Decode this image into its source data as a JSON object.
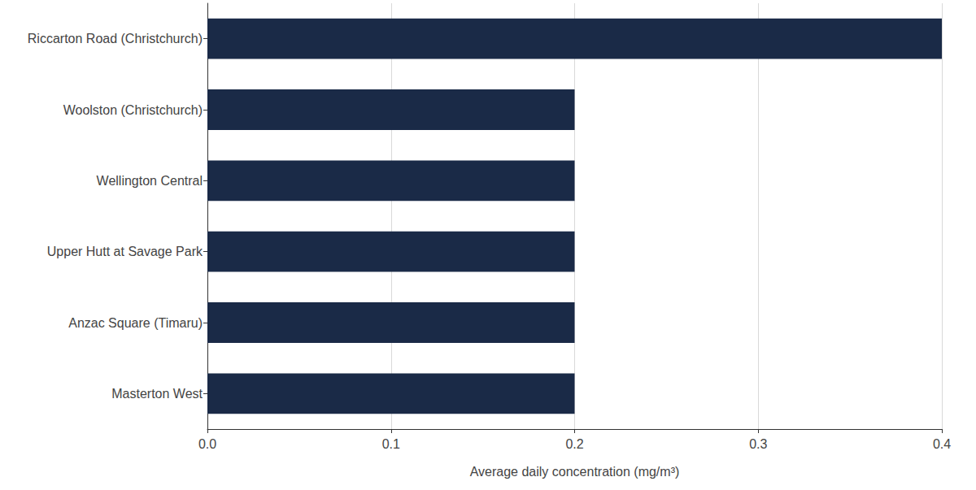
{
  "chart_data": {
    "type": "bar",
    "orientation": "horizontal",
    "categories": [
      "Riccarton Road (Christchurch)",
      "Woolston (Christchurch)",
      "Wellington Central",
      "Upper Hutt at Savage Park",
      "Anzac Square (Timaru)",
      "Masterton West"
    ],
    "values": [
      0.4,
      0.2,
      0.2,
      0.2,
      0.2,
      0.2
    ],
    "color": "#1a2a47",
    "x_label": "Average daily concentration (mg/m³)",
    "xlim": [
      0,
      0.4
    ],
    "xticks": [
      {
        "value": 0,
        "label": "0.0"
      },
      0.1,
      0.2,
      0.3,
      0.4
    ],
    "grid": true
  }
}
